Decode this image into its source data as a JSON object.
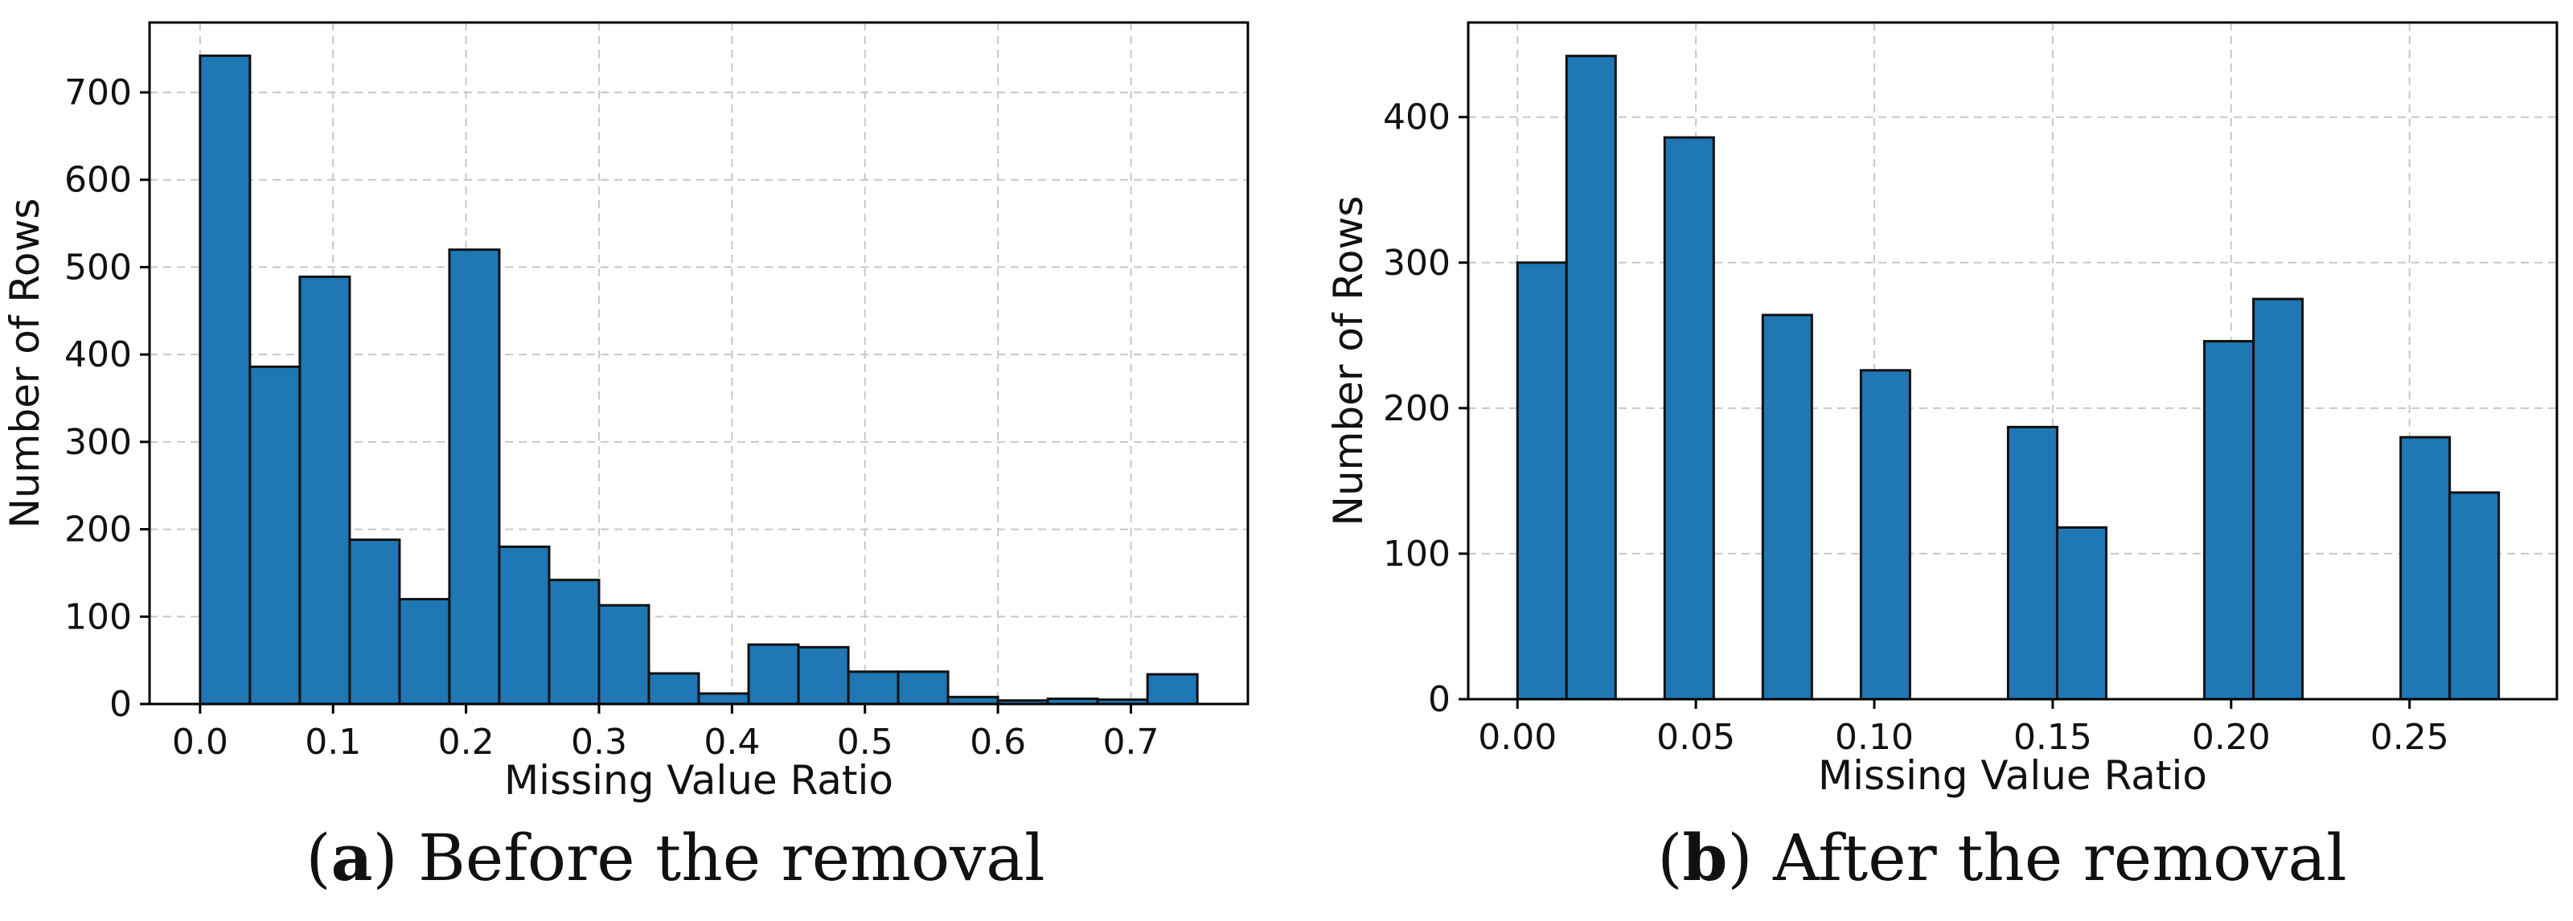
{
  "colors": {
    "bar_fill": "#1f77b4",
    "bar_edge": "#111111",
    "grid": "#c8c8c8",
    "axis": "#000000"
  },
  "chart_data": [
    {
      "type": "bar",
      "panel_letter": "a",
      "caption": "Before the removal",
      "xlabel": "Missing Value Ratio",
      "ylabel": "Number of Rows",
      "xlim": [
        -0.038,
        0.788
      ],
      "ylim": [
        0,
        780
      ],
      "xticks": [
        0.0,
        0.1,
        0.2,
        0.3,
        0.4,
        0.5,
        0.6,
        0.7
      ],
      "xtick_labels": [
        "0.0",
        "0.1",
        "0.2",
        "0.3",
        "0.4",
        "0.5",
        "0.6",
        "0.7"
      ],
      "yticks": [
        0,
        100,
        200,
        300,
        400,
        500,
        600,
        700
      ],
      "ytick_labels": [
        "0",
        "100",
        "200",
        "300",
        "400",
        "500",
        "600",
        "700"
      ],
      "grid": true,
      "bins": [
        {
          "x0": 0.0,
          "x1": 0.0375,
          "value": 742
        },
        {
          "x0": 0.0375,
          "x1": 0.075,
          "value": 386
        },
        {
          "x0": 0.075,
          "x1": 0.1125,
          "value": 489
        },
        {
          "x0": 0.1125,
          "x1": 0.15,
          "value": 188
        },
        {
          "x0": 0.15,
          "x1": 0.1875,
          "value": 120
        },
        {
          "x0": 0.1875,
          "x1": 0.225,
          "value": 520
        },
        {
          "x0": 0.225,
          "x1": 0.2625,
          "value": 180
        },
        {
          "x0": 0.2625,
          "x1": 0.3,
          "value": 142
        },
        {
          "x0": 0.3,
          "x1": 0.3375,
          "value": 113
        },
        {
          "x0": 0.3375,
          "x1": 0.375,
          "value": 35
        },
        {
          "x0": 0.375,
          "x1": 0.4125,
          "value": 12
        },
        {
          "x0": 0.4125,
          "x1": 0.45,
          "value": 68
        },
        {
          "x0": 0.45,
          "x1": 0.4875,
          "value": 65
        },
        {
          "x0": 0.4875,
          "x1": 0.525,
          "value": 37
        },
        {
          "x0": 0.525,
          "x1": 0.5625,
          "value": 37
        },
        {
          "x0": 0.5625,
          "x1": 0.6,
          "value": 8
        },
        {
          "x0": 0.6,
          "x1": 0.6375,
          "value": 4
        },
        {
          "x0": 0.6375,
          "x1": 0.675,
          "value": 6
        },
        {
          "x0": 0.675,
          "x1": 0.7125,
          "value": 5
        },
        {
          "x0": 0.7125,
          "x1": 0.75,
          "value": 34
        }
      ]
    },
    {
      "type": "bar",
      "panel_letter": "b",
      "caption": "After the removal",
      "xlabel": "Missing Value Ratio",
      "ylabel": "Number of Rows",
      "xlim": [
        -0.0138,
        0.2913
      ],
      "ylim": [
        0,
        465
      ],
      "xticks": [
        0.0,
        0.05,
        0.1,
        0.15,
        0.2,
        0.25
      ],
      "xtick_labels": [
        "0.00",
        "0.05",
        "0.10",
        "0.15",
        "0.20",
        "0.25"
      ],
      "yticks": [
        0,
        100,
        200,
        300,
        400
      ],
      "ytick_labels": [
        "0",
        "100",
        "200",
        "300",
        "400"
      ],
      "grid": true,
      "bins": [
        {
          "x0": 0.0,
          "x1": 0.01375,
          "value": 300
        },
        {
          "x0": 0.01375,
          "x1": 0.0275,
          "value": 442
        },
        {
          "x0": 0.04125,
          "x1": 0.055,
          "value": 386
        },
        {
          "x0": 0.06875,
          "x1": 0.0825,
          "value": 264
        },
        {
          "x0": 0.09625,
          "x1": 0.11,
          "value": 226
        },
        {
          "x0": 0.1375,
          "x1": 0.15125,
          "value": 187
        },
        {
          "x0": 0.15125,
          "x1": 0.165,
          "value": 118
        },
        {
          "x0": 0.1925,
          "x1": 0.20625,
          "value": 246
        },
        {
          "x0": 0.20625,
          "x1": 0.22,
          "value": 275
        },
        {
          "x0": 0.2475,
          "x1": 0.26125,
          "value": 180
        },
        {
          "x0": 0.26125,
          "x1": 0.275,
          "value": 142
        }
      ]
    }
  ]
}
